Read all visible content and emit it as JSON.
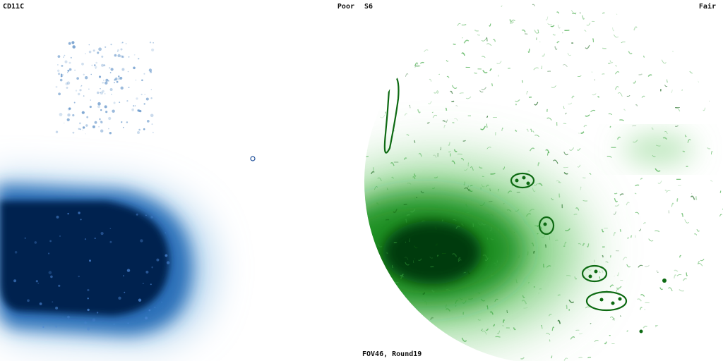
{
  "panels": [
    {
      "marker": "CD11C",
      "quality": "Poor",
      "stain_color": "#0b2f7a"
    },
    {
      "marker": "S6",
      "quality": "Fair",
      "stain_color": "#0f6e12"
    }
  ],
  "footer": {
    "caption": "FOV46, Round19"
  }
}
